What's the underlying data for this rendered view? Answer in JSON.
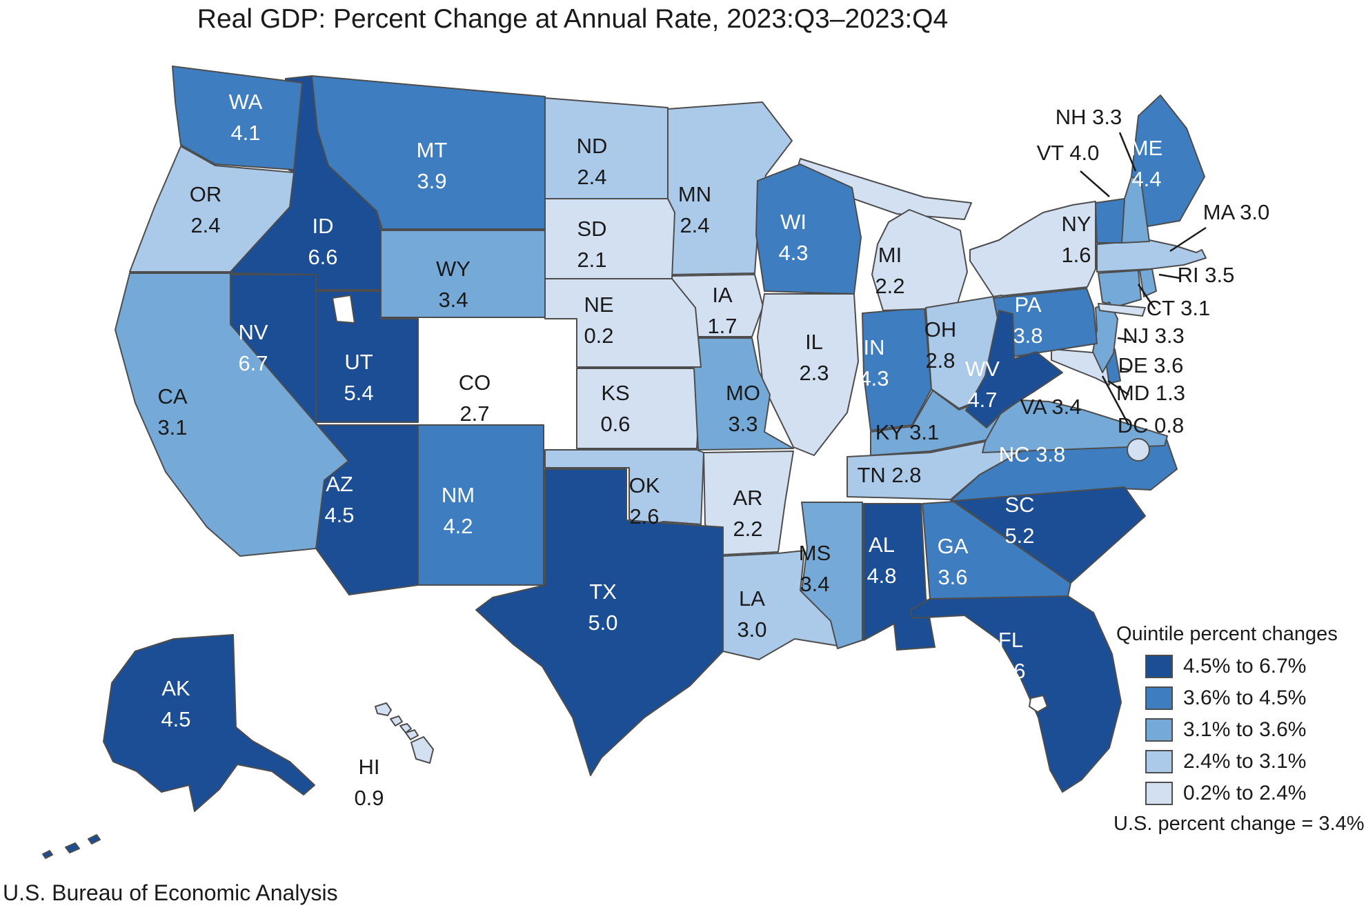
{
  "title": "Real GDP: Percent Change at Annual Rate, 2023:Q3–2023:Q4",
  "source": "U.S. Bureau of Economic Analysis",
  "legend": {
    "title": "Quintile percent changes",
    "note": "U.S. percent change = 3.4%",
    "entries": [
      {
        "key": "q5",
        "label": "4.5% to 6.7%",
        "color": "#1b4e95"
      },
      {
        "key": "q4",
        "label": "3.6% to 4.5%",
        "color": "#3e7dbf"
      },
      {
        "key": "q3",
        "label": "3.1% to 3.6%",
        "color": "#74a9d8"
      },
      {
        "key": "q2",
        "label": "2.4% to 3.1%",
        "color": "#abc9e9"
      },
      {
        "key": "q1",
        "label": "0.2% to 2.4%",
        "color": "#d2e0f2"
      }
    ]
  },
  "map": {
    "border_color": "#4d4d4d",
    "label_dark": "#1a1a1a",
    "label_light": "#ffffff",
    "water_color": "#ffffff"
  },
  "chart_data": {
    "type": "choropleth-map",
    "title": "Real GDP: Percent Change at Annual Rate, 2023:Q3–2023:Q4",
    "unit": "percent change at annual rate",
    "us_value": 3.4,
    "states": [
      {
        "abbr": "AK",
        "value": 4.5,
        "quintile": "q5"
      },
      {
        "abbr": "AL",
        "value": 4.8,
        "quintile": "q5"
      },
      {
        "abbr": "AR",
        "value": 2.2,
        "quintile": "q1"
      },
      {
        "abbr": "AZ",
        "value": 4.5,
        "quintile": "q5"
      },
      {
        "abbr": "CA",
        "value": 3.1,
        "quintile": "q3"
      },
      {
        "abbr": "CO",
        "value": 2.7,
        "quintile": "q2"
      },
      {
        "abbr": "CT",
        "value": 3.1,
        "quintile": "q3"
      },
      {
        "abbr": "DC",
        "value": 0.8,
        "quintile": "q1"
      },
      {
        "abbr": "DE",
        "value": 3.6,
        "quintile": "q4"
      },
      {
        "abbr": "FL",
        "value": 4.6,
        "quintile": "q5"
      },
      {
        "abbr": "GA",
        "value": 3.6,
        "quintile": "q4"
      },
      {
        "abbr": "HI",
        "value": 0.9,
        "quintile": "q1"
      },
      {
        "abbr": "IA",
        "value": 1.7,
        "quintile": "q1"
      },
      {
        "abbr": "ID",
        "value": 6.6,
        "quintile": "q5"
      },
      {
        "abbr": "IL",
        "value": 2.3,
        "quintile": "q1"
      },
      {
        "abbr": "IN",
        "value": 4.3,
        "quintile": "q4"
      },
      {
        "abbr": "KS",
        "value": 0.6,
        "quintile": "q1"
      },
      {
        "abbr": "KY",
        "value": 3.1,
        "quintile": "q3"
      },
      {
        "abbr": "LA",
        "value": 3.0,
        "quintile": "q2"
      },
      {
        "abbr": "MA",
        "value": 3.0,
        "quintile": "q2"
      },
      {
        "abbr": "MD",
        "value": 1.3,
        "quintile": "q1"
      },
      {
        "abbr": "ME",
        "value": 4.4,
        "quintile": "q4"
      },
      {
        "abbr": "MI",
        "value": 2.2,
        "quintile": "q1"
      },
      {
        "abbr": "MN",
        "value": 2.4,
        "quintile": "q2"
      },
      {
        "abbr": "MO",
        "value": 3.3,
        "quintile": "q3"
      },
      {
        "abbr": "MS",
        "value": 3.4,
        "quintile": "q3"
      },
      {
        "abbr": "MT",
        "value": 3.9,
        "quintile": "q4"
      },
      {
        "abbr": "NC",
        "value": 3.8,
        "quintile": "q4"
      },
      {
        "abbr": "ND",
        "value": 2.4,
        "quintile": "q2"
      },
      {
        "abbr": "NE",
        "value": 0.2,
        "quintile": "q1"
      },
      {
        "abbr": "NH",
        "value": 3.3,
        "quintile": "q3"
      },
      {
        "abbr": "NJ",
        "value": 3.3,
        "quintile": "q3"
      },
      {
        "abbr": "NM",
        "value": 4.2,
        "quintile": "q4"
      },
      {
        "abbr": "NV",
        "value": 6.7,
        "quintile": "q5"
      },
      {
        "abbr": "NY",
        "value": 1.6,
        "quintile": "q1"
      },
      {
        "abbr": "OH",
        "value": 2.8,
        "quintile": "q2"
      },
      {
        "abbr": "OK",
        "value": 2.6,
        "quintile": "q2"
      },
      {
        "abbr": "OR",
        "value": 2.4,
        "quintile": "q2"
      },
      {
        "abbr": "PA",
        "value": 3.8,
        "quintile": "q4"
      },
      {
        "abbr": "RI",
        "value": 3.5,
        "quintile": "q3"
      },
      {
        "abbr": "SC",
        "value": 5.2,
        "quintile": "q5"
      },
      {
        "abbr": "SD",
        "value": 2.1,
        "quintile": "q1"
      },
      {
        "abbr": "TN",
        "value": 2.8,
        "quintile": "q2"
      },
      {
        "abbr": "TX",
        "value": 5.0,
        "quintile": "q5"
      },
      {
        "abbr": "UT",
        "value": 5.4,
        "quintile": "q5"
      },
      {
        "abbr": "VA",
        "value": 3.4,
        "quintile": "q3"
      },
      {
        "abbr": "VT",
        "value": 4.0,
        "quintile": "q4"
      },
      {
        "abbr": "WA",
        "value": 4.1,
        "quintile": "q4"
      },
      {
        "abbr": "WI",
        "value": 4.3,
        "quintile": "q4"
      },
      {
        "abbr": "WV",
        "value": 4.7,
        "quintile": "q5"
      },
      {
        "abbr": "WY",
        "value": 3.4,
        "quintile": "q3"
      }
    ]
  }
}
